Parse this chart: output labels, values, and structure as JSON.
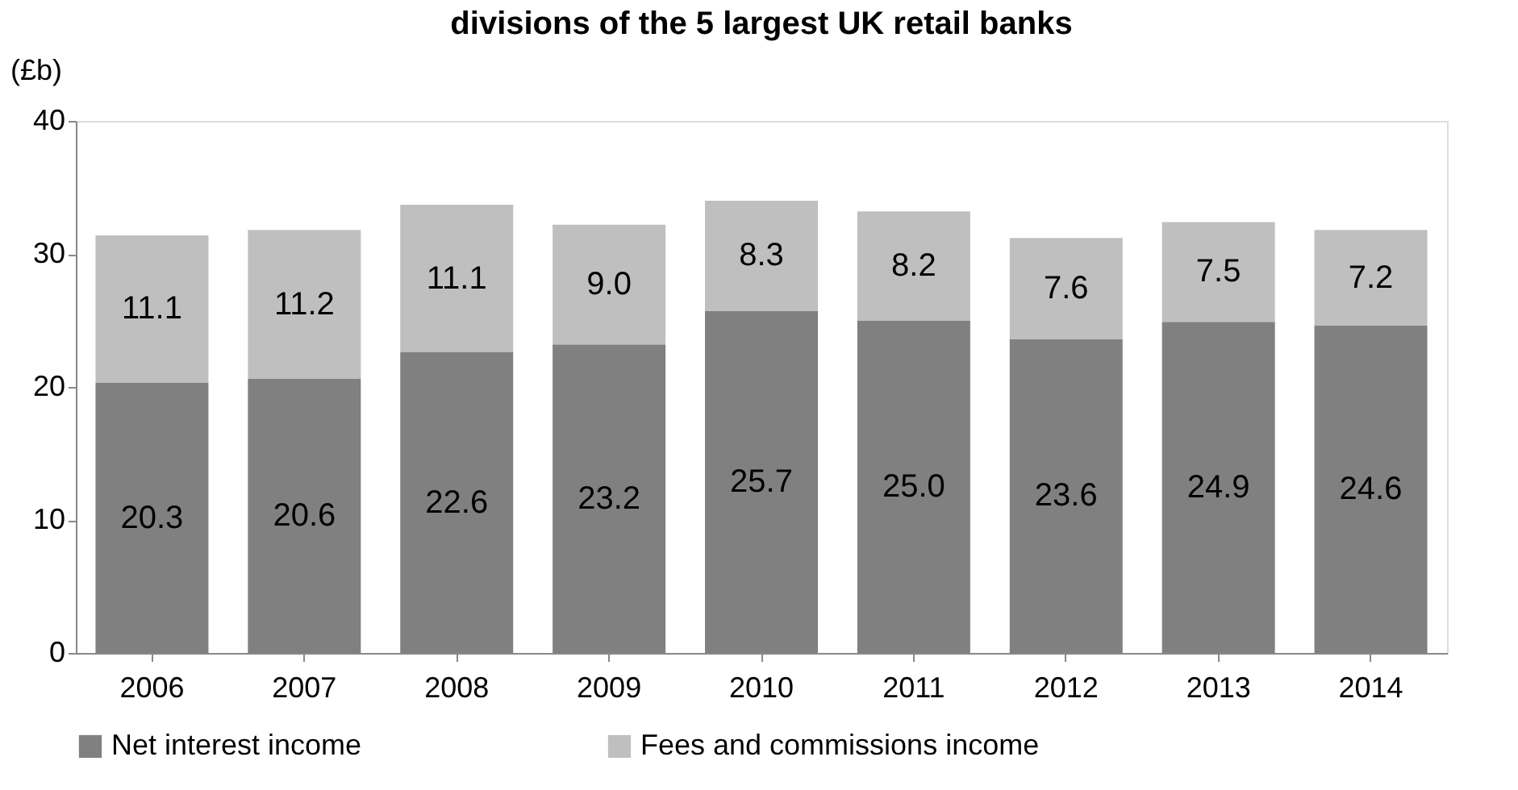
{
  "chart_data": {
    "type": "bar",
    "title": "divisions of the 5 largest UK retail banks",
    "ylabel": "(£b)",
    "categories": [
      "2006",
      "2007",
      "2008",
      "2009",
      "2010",
      "2011",
      "2012",
      "2013",
      "2014"
    ],
    "series": [
      {
        "name": "Net interest income",
        "color": "#808080",
        "values": [
          20.3,
          20.6,
          22.6,
          23.2,
          25.7,
          25.0,
          23.6,
          24.9,
          24.6
        ],
        "value_labels": [
          "20.3",
          "20.6",
          "22.6",
          "23.2",
          "25.7",
          "25.0",
          "23.6",
          "24.9",
          "24.6"
        ]
      },
      {
        "name": "Fees and commissions income",
        "color": "#bfbfbf",
        "values": [
          11.1,
          11.2,
          11.1,
          9.0,
          8.3,
          8.2,
          7.6,
          7.5,
          7.2
        ],
        "value_labels": [
          "11.1",
          "11.2",
          "11.1",
          "9.0",
          "8.3",
          "8.2",
          "7.6",
          "7.5",
          "7.2"
        ]
      }
    ],
    "stacked": true,
    "ylim": [
      0,
      40
    ],
    "yticks": [
      0,
      10,
      20,
      30,
      40
    ],
    "grid": false,
    "legend": "bottom"
  }
}
